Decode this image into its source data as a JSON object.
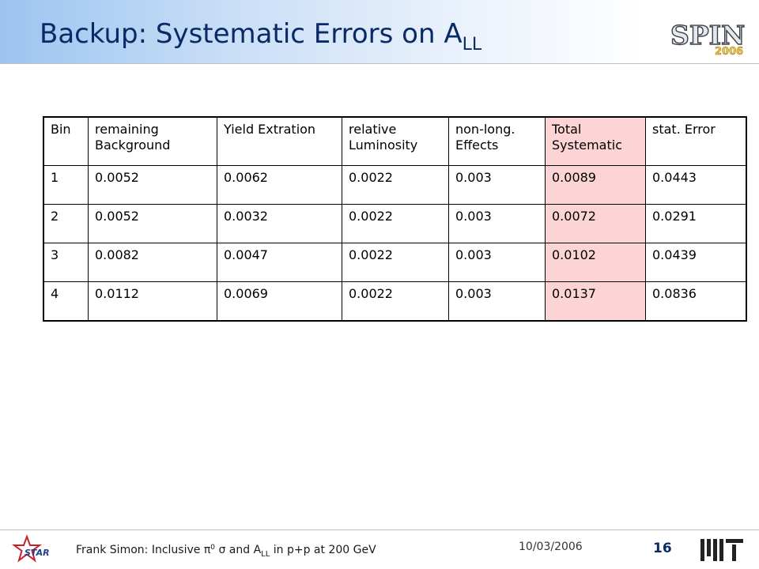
{
  "slide": {
    "title_main": "Backup: Systematic Errors on A",
    "title_sub": "LL",
    "logo_text": "SPIN",
    "logo_year": "2006",
    "star_logo_text": "STAR",
    "page_number": "16",
    "date": "10/03/2006",
    "footer": {
      "prefix": "Frank Simon: Inclusive ",
      "pi_symbol": "π",
      "pi_sup": "0",
      "sigma_symbol": "σ",
      "and_text": " and A",
      "all_sub": "LL",
      "suffix": " in p+p at 200 GeV"
    }
  },
  "table": {
    "headers": [
      "Bin",
      "remaining Background",
      "Yield Extration",
      "relative Luminosity",
      "non-long. Effects",
      "Total Systematic",
      "stat. Error"
    ],
    "rows": [
      [
        "1",
        "0.0052",
        "0.0062",
        "0.0022",
        "0.003",
        "0.0089",
        "0.0443"
      ],
      [
        "2",
        "0.0052",
        "0.0032",
        "0.0022",
        "0.003",
        "0.0072",
        "0.0291"
      ],
      [
        "3",
        "0.0082",
        "0.0047",
        "0.0022",
        "0.003",
        "0.0102",
        "0.0439"
      ],
      [
        "4",
        "0.0112",
        "0.0069",
        "0.0022",
        "0.003",
        "0.0137",
        "0.0836"
      ]
    ]
  },
  "colors": {
    "highlight_column": "#fdd4d6",
    "title": "#0a2a66"
  }
}
